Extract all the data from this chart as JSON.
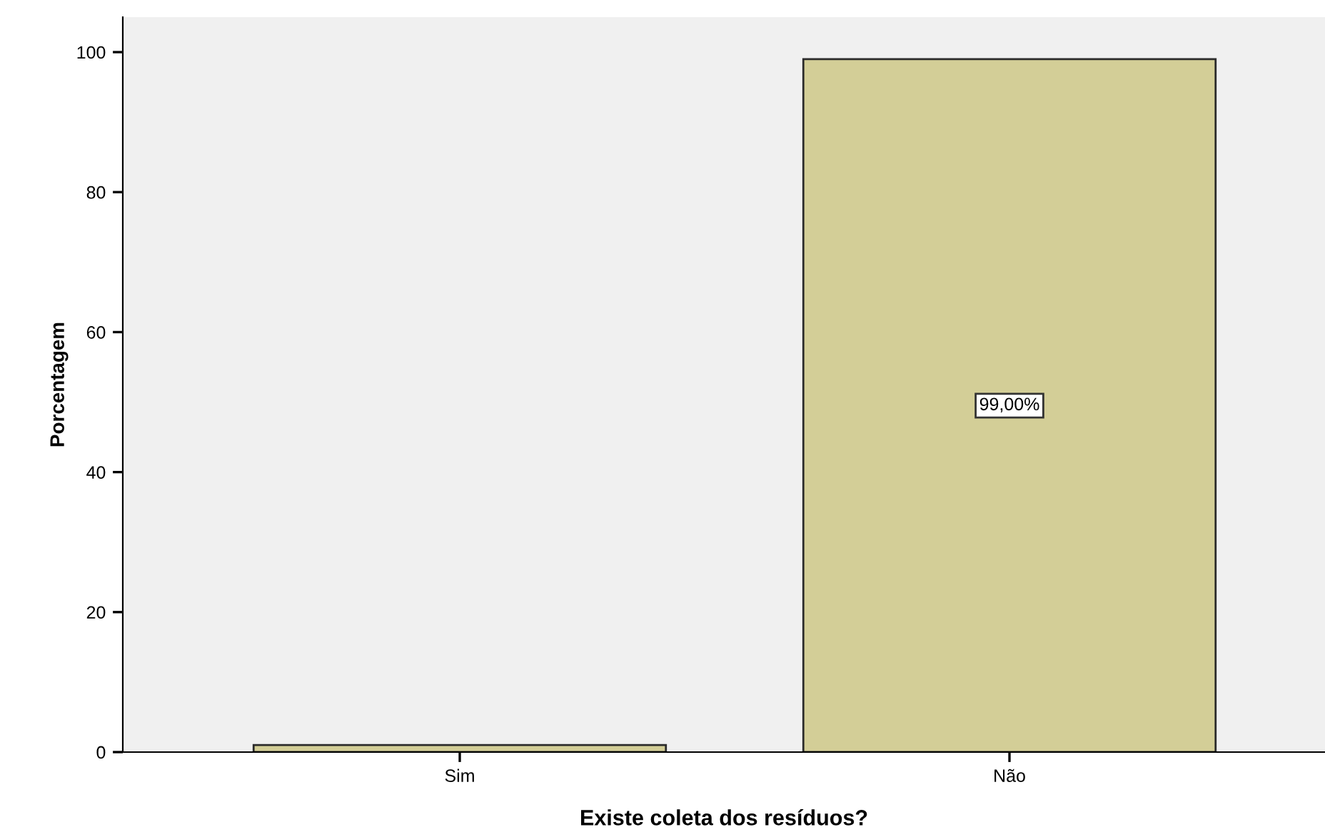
{
  "chart_data": {
    "type": "bar",
    "xlabel": "Existe coleta dos resíduos?",
    "ylabel": "Porcentagem",
    "categories": [
      "Sim",
      "Não"
    ],
    "values": [
      1,
      99
    ],
    "value_labels": [
      null,
      "99,00%"
    ],
    "color": "#d3ce97",
    "ylim": [
      0,
      105
    ],
    "yticks": [
      0,
      20,
      40,
      60,
      80,
      100
    ],
    "grid": false,
    "legend": false
  }
}
